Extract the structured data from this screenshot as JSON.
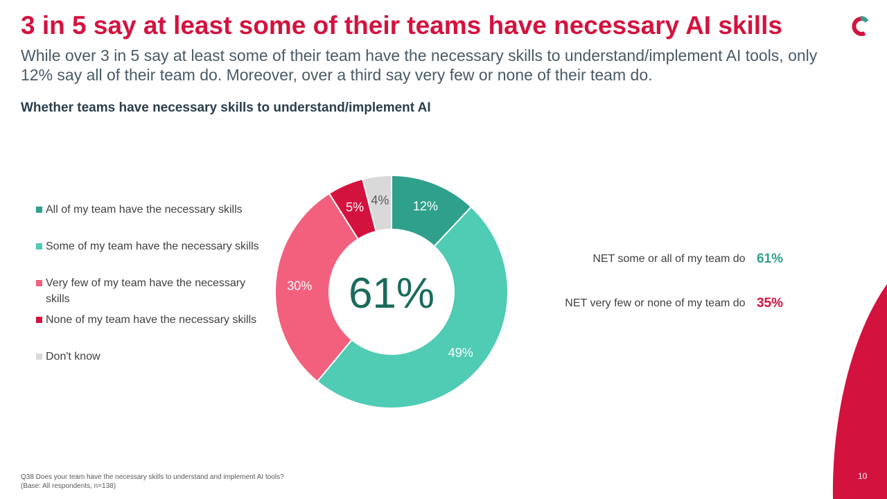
{
  "title": "3 in 5 say at least some of their teams have necessary AI skills",
  "subtitle": "While over 3 in 5 say at least some of their team have the necessary skills to understand/implement AI tools, only 12% say all of their team do. Moreover, over a third say very few or none of their team do.",
  "colors": {
    "title": "#d4123e",
    "all": "#2fa08c",
    "some": "#50cbb4",
    "very_few": "#f2607d",
    "none": "#d4123e",
    "dont_know": "#d9d9d9",
    "center_text": "#1a6b5c"
  },
  "chart_data": {
    "type": "pie",
    "donut": true,
    "title": "Whether teams have necessary skills to understand/implement AI",
    "center_label": "61%",
    "legend_position": "left",
    "slices": [
      {
        "name": "All of my team have the necessary skills",
        "value": 12,
        "label": "12%",
        "color": "#2fa08c"
      },
      {
        "name": "Some of my team have the necessary skills",
        "value": 49,
        "label": "49%",
        "color": "#50cbb4"
      },
      {
        "name": "Very few of my team have the necessary skills",
        "value": 30,
        "label": "30%",
        "color": "#f2607d"
      },
      {
        "name": "None of my team have the necessary skills",
        "value": 5,
        "label": "5%",
        "color": "#d4123e"
      },
      {
        "name": "Don't know",
        "value": 4,
        "label": "4%",
        "color": "#d9d9d9"
      }
    ]
  },
  "net": [
    {
      "label": "NET some or all of my team do",
      "value": "61%",
      "color": "#2fa08c"
    },
    {
      "label": "NET very few or none of my team do",
      "value": "35%",
      "color": "#d4123e"
    }
  ],
  "footnote": {
    "question": "Q38 Does your team have the necessary skills to understand and implement AI tools?",
    "base": "(Base: All respondents, n=138)"
  },
  "page_number": "10",
  "logo_icon": "c-logo-icon"
}
